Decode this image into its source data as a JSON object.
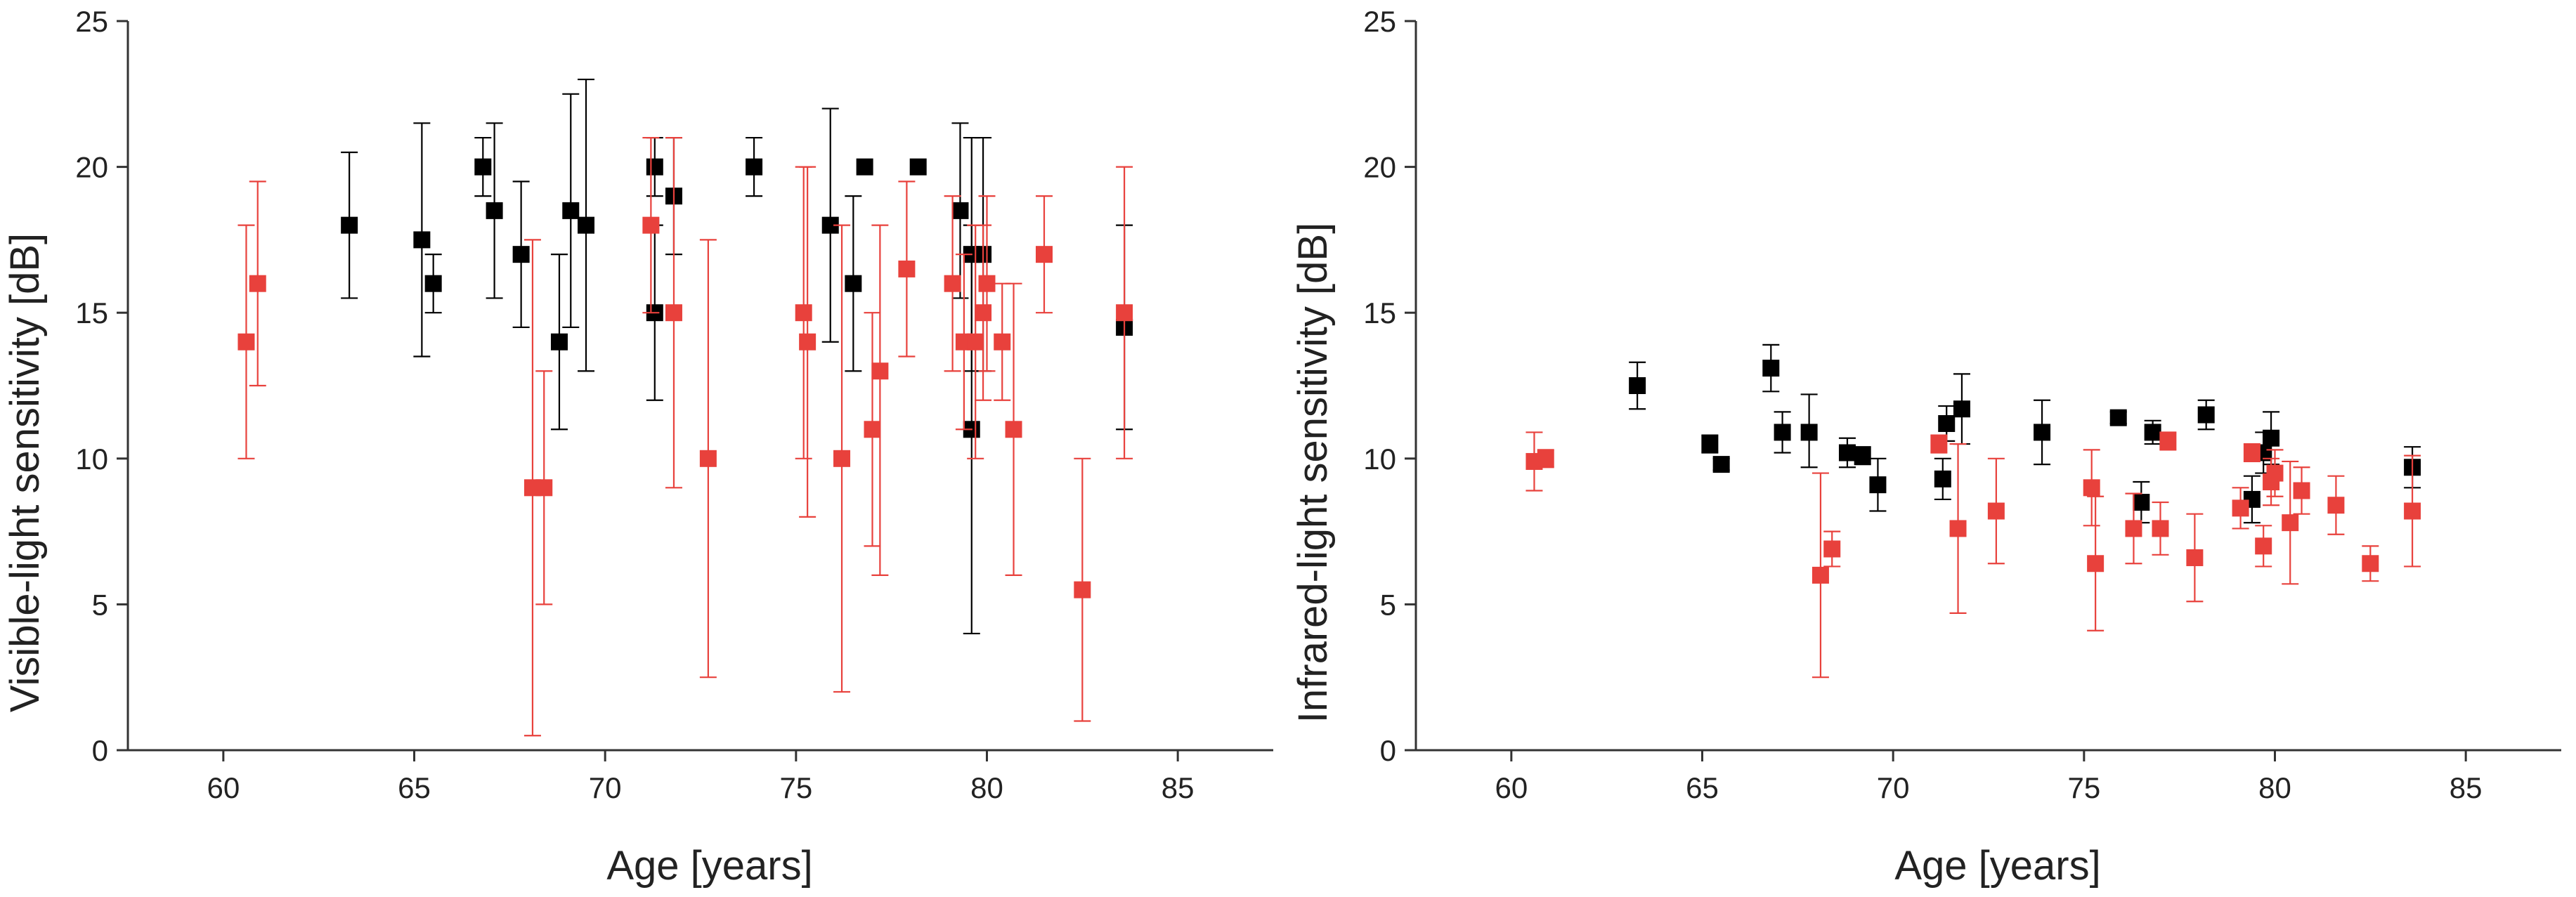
{
  "chart_data": [
    {
      "type": "scatter",
      "title": "",
      "xlabel": "Age [years]",
      "ylabel": "Visible-light sensitivity [dB]",
      "xlim": [
        57.5,
        87.5
      ],
      "ylim": [
        0,
        25
      ],
      "xticks": [
        60,
        65,
        70,
        75,
        80,
        85
      ],
      "yticks": [
        0,
        5,
        10,
        15,
        20,
        25
      ],
      "grid": false,
      "series": [
        {
          "color": "#000000",
          "points": [
            {
              "x": 63.3,
              "y": 18.0,
              "lo": 15.5,
              "hi": 20.5
            },
            {
              "x": 65.2,
              "y": 17.5,
              "lo": 13.5,
              "hi": 21.5
            },
            {
              "x": 65.5,
              "y": 16.0,
              "lo": 15.0,
              "hi": 17.0
            },
            {
              "x": 66.8,
              "y": 20.0,
              "lo": 19.0,
              "hi": 21.0
            },
            {
              "x": 67.1,
              "y": 18.5,
              "lo": 15.5,
              "hi": 21.5
            },
            {
              "x": 67.8,
              "y": 17.0,
              "lo": 14.5,
              "hi": 19.5
            },
            {
              "x": 68.8,
              "y": 14.0,
              "lo": 11.0,
              "hi": 17.0
            },
            {
              "x": 69.1,
              "y": 18.5,
              "lo": 14.5,
              "hi": 22.5
            },
            {
              "x": 69.5,
              "y": 18.0,
              "lo": 13.0,
              "hi": 23.0
            },
            {
              "x": 71.3,
              "y": 20.0,
              "lo": 19.0,
              "hi": 21.0
            },
            {
              "x": 71.3,
              "y": 15.0,
              "lo": 12.0,
              "hi": 18.0
            },
            {
              "x": 71.8,
              "y": 19.0,
              "lo": 17.0,
              "hi": 21.0
            },
            {
              "x": 73.9,
              "y": 20.0,
              "lo": 19.0,
              "hi": 21.0
            },
            {
              "x": 75.9,
              "y": 18.0,
              "lo": 14.0,
              "hi": 22.0
            },
            {
              "x": 76.5,
              "y": 16.0,
              "lo": 13.0,
              "hi": 19.0
            },
            {
              "x": 76.8,
              "y": 20.0,
              "lo": 20.0,
              "hi": 20.0
            },
            {
              "x": 78.2,
              "y": 20.0,
              "lo": 20.0,
              "hi": 20.0
            },
            {
              "x": 79.3,
              "y": 18.5,
              "lo": 15.5,
              "hi": 21.5
            },
            {
              "x": 79.6,
              "y": 11.0,
              "lo": 4.0,
              "hi": 18.0
            },
            {
              "x": 79.6,
              "y": 17.0,
              "lo": 13.0,
              "hi": 21.0
            },
            {
              "x": 79.9,
              "y": 17.0,
              "lo": 13.0,
              "hi": 21.0
            },
            {
              "x": 83.6,
              "y": 14.5,
              "lo": 11.0,
              "hi": 18.0
            }
          ]
        },
        {
          "color": "#e8413c",
          "points": [
            {
              "x": 60.6,
              "y": 14.0,
              "lo": 10.0,
              "hi": 18.0
            },
            {
              "x": 60.9,
              "y": 16.0,
              "lo": 12.5,
              "hi": 19.5
            },
            {
              "x": 68.1,
              "y": 9.0,
              "lo": 0.5,
              "hi": 17.5
            },
            {
              "x": 68.4,
              "y": 9.0,
              "lo": 5.0,
              "hi": 13.0
            },
            {
              "x": 71.2,
              "y": 18.0,
              "lo": 15.0,
              "hi": 21.0
            },
            {
              "x": 71.8,
              "y": 15.0,
              "lo": 9.0,
              "hi": 21.0
            },
            {
              "x": 72.7,
              "y": 10.0,
              "lo": 2.5,
              "hi": 17.5
            },
            {
              "x": 75.2,
              "y": 15.0,
              "lo": 10.0,
              "hi": 20.0
            },
            {
              "x": 75.3,
              "y": 14.0,
              "lo": 8.0,
              "hi": 20.0
            },
            {
              "x": 76.2,
              "y": 10.0,
              "lo": 2.0,
              "hi": 18.0
            },
            {
              "x": 77.0,
              "y": 11.0,
              "lo": 7.0,
              "hi": 15.0
            },
            {
              "x": 77.2,
              "y": 13.0,
              "lo": 6.0,
              "hi": 18.0
            },
            {
              "x": 77.9,
              "y": 16.5,
              "lo": 13.5,
              "hi": 19.5
            },
            {
              "x": 79.1,
              "y": 16.0,
              "lo": 13.0,
              "hi": 19.0
            },
            {
              "x": 79.4,
              "y": 14.0,
              "lo": 11.0,
              "hi": 17.0
            },
            {
              "x": 79.7,
              "y": 14.0,
              "lo": 10.0,
              "hi": 18.0
            },
            {
              "x": 79.9,
              "y": 15.0,
              "lo": 12.0,
              "hi": 18.0
            },
            {
              "x": 80.0,
              "y": 16.0,
              "lo": 13.0,
              "hi": 19.0
            },
            {
              "x": 80.4,
              "y": 14.0,
              "lo": 12.0,
              "hi": 16.0
            },
            {
              "x": 80.7,
              "y": 11.0,
              "lo": 6.0,
              "hi": 16.0
            },
            {
              "x": 81.5,
              "y": 17.0,
              "lo": 15.0,
              "hi": 19.0
            },
            {
              "x": 82.5,
              "y": 5.5,
              "lo": 1.0,
              "hi": 10.0
            },
            {
              "x": 83.6,
              "y": 15.0,
              "lo": 10.0,
              "hi": 20.0
            }
          ]
        }
      ]
    },
    {
      "type": "scatter",
      "title": "",
      "xlabel": "Age [years]",
      "ylabel": "Infrared-light sensitivity [dB]",
      "xlim": [
        57.5,
        87.5
      ],
      "ylim": [
        0,
        25
      ],
      "xticks": [
        60,
        65,
        70,
        75,
        80,
        85
      ],
      "yticks": [
        0,
        5,
        10,
        15,
        20,
        25
      ],
      "grid": false,
      "series": [
        {
          "color": "#000000",
          "points": [
            {
              "x": 63.3,
              "y": 12.5,
              "lo": 11.7,
              "hi": 13.3
            },
            {
              "x": 65.2,
              "y": 10.5,
              "lo": 10.2,
              "hi": 10.8
            },
            {
              "x": 65.5,
              "y": 9.8,
              "lo": 9.6,
              "hi": 10.0
            },
            {
              "x": 66.8,
              "y": 13.1,
              "lo": 12.3,
              "hi": 13.9
            },
            {
              "x": 67.1,
              "y": 10.9,
              "lo": 10.2,
              "hi": 11.6
            },
            {
              "x": 67.8,
              "y": 10.9,
              "lo": 9.7,
              "hi": 12.2
            },
            {
              "x": 68.8,
              "y": 10.2,
              "lo": 9.7,
              "hi": 10.7
            },
            {
              "x": 69.2,
              "y": 10.1,
              "lo": 9.8,
              "hi": 10.4
            },
            {
              "x": 69.6,
              "y": 9.1,
              "lo": 8.2,
              "hi": 10.0
            },
            {
              "x": 71.3,
              "y": 9.3,
              "lo": 8.6,
              "hi": 10.0
            },
            {
              "x": 71.4,
              "y": 11.2,
              "lo": 10.6,
              "hi": 11.8
            },
            {
              "x": 71.8,
              "y": 11.7,
              "lo": 10.5,
              "hi": 12.9
            },
            {
              "x": 73.9,
              "y": 10.9,
              "lo": 9.8,
              "hi": 12.0
            },
            {
              "x": 75.9,
              "y": 11.4,
              "lo": 11.2,
              "hi": 11.6
            },
            {
              "x": 76.5,
              "y": 8.5,
              "lo": 7.8,
              "hi": 9.2
            },
            {
              "x": 76.8,
              "y": 10.9,
              "lo": 10.5,
              "hi": 11.3
            },
            {
              "x": 78.2,
              "y": 11.5,
              "lo": 11.0,
              "hi": 12.0
            },
            {
              "x": 79.4,
              "y": 8.6,
              "lo": 7.8,
              "hi": 9.4
            },
            {
              "x": 79.7,
              "y": 10.2,
              "lo": 9.5,
              "hi": 10.9
            },
            {
              "x": 79.9,
              "y": 10.7,
              "lo": 9.8,
              "hi": 11.6
            },
            {
              "x": 83.6,
              "y": 9.7,
              "lo": 9.0,
              "hi": 10.4
            }
          ]
        },
        {
          "color": "#e8413c",
          "points": [
            {
              "x": 60.6,
              "y": 9.9,
              "lo": 8.9,
              "hi": 10.9
            },
            {
              "x": 60.9,
              "y": 10.0,
              "lo": 9.7,
              "hi": 10.3
            },
            {
              "x": 68.1,
              "y": 6.0,
              "lo": 2.5,
              "hi": 9.5
            },
            {
              "x": 68.4,
              "y": 6.9,
              "lo": 6.3,
              "hi": 7.5
            },
            {
              "x": 71.2,
              "y": 10.5,
              "lo": 10.2,
              "hi": 10.8
            },
            {
              "x": 71.7,
              "y": 7.6,
              "lo": 4.7,
              "hi": 10.5
            },
            {
              "x": 72.7,
              "y": 8.2,
              "lo": 6.4,
              "hi": 10.0
            },
            {
              "x": 75.2,
              "y": 9.0,
              "lo": 7.7,
              "hi": 10.3
            },
            {
              "x": 75.3,
              "y": 6.4,
              "lo": 4.1,
              "hi": 8.7
            },
            {
              "x": 76.3,
              "y": 7.6,
              "lo": 6.4,
              "hi": 8.8
            },
            {
              "x": 77.0,
              "y": 7.6,
              "lo": 6.7,
              "hi": 8.5
            },
            {
              "x": 77.2,
              "y": 10.6,
              "lo": 10.3,
              "hi": 10.9
            },
            {
              "x": 77.9,
              "y": 6.6,
              "lo": 5.1,
              "hi": 8.1
            },
            {
              "x": 79.1,
              "y": 8.3,
              "lo": 7.6,
              "hi": 9.0
            },
            {
              "x": 79.4,
              "y": 10.2,
              "lo": 9.9,
              "hi": 10.5
            },
            {
              "x": 79.7,
              "y": 7.0,
              "lo": 6.3,
              "hi": 7.7
            },
            {
              "x": 79.9,
              "y": 9.2,
              "lo": 8.4,
              "hi": 10.0
            },
            {
              "x": 80.0,
              "y": 9.5,
              "lo": 8.7,
              "hi": 10.3
            },
            {
              "x": 80.4,
              "y": 7.8,
              "lo": 5.7,
              "hi": 9.9
            },
            {
              "x": 80.7,
              "y": 8.9,
              "lo": 8.1,
              "hi": 9.7
            },
            {
              "x": 81.6,
              "y": 8.4,
              "lo": 7.4,
              "hi": 9.4
            },
            {
              "x": 82.5,
              "y": 6.4,
              "lo": 5.8,
              "hi": 7.0
            },
            {
              "x": 83.6,
              "y": 8.2,
              "lo": 6.3,
              "hi": 10.1
            }
          ]
        }
      ]
    }
  ]
}
